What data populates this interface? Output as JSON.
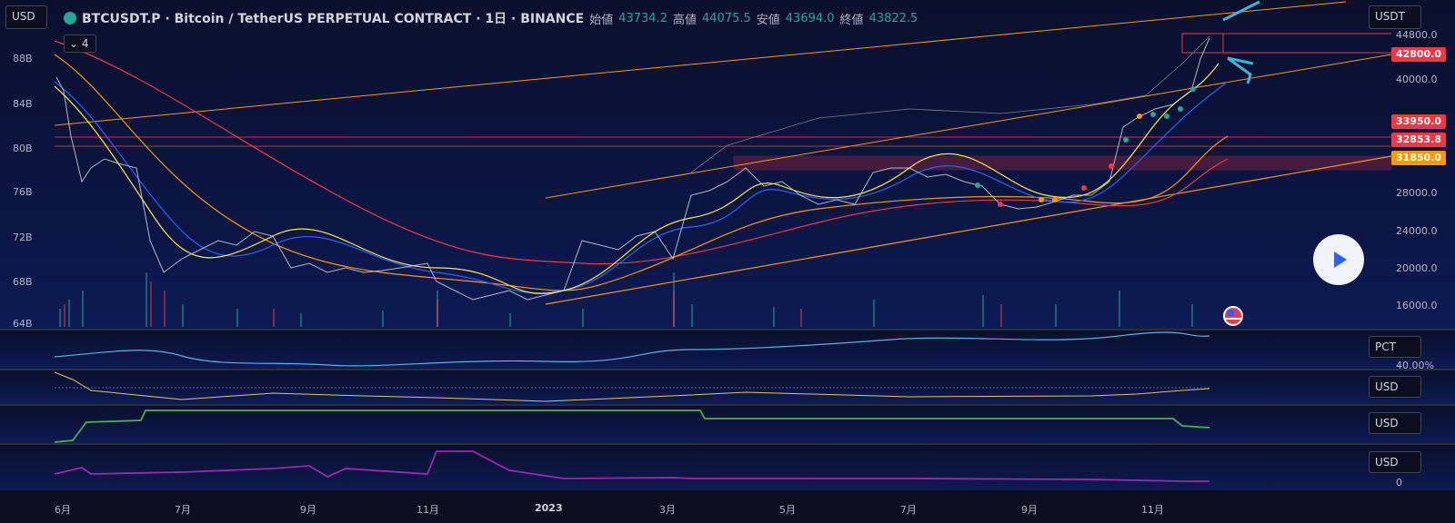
{
  "header": {
    "currency_left": "USD",
    "title": "BTCUSDT.P · Bitcoin / TetherUS PERPETUAL CONTRACT · 1日 · BINANCE",
    "ohlc": [
      {
        "key": "始値",
        "val": "43734.2"
      },
      {
        "key": "高値",
        "val": "44075.5"
      },
      {
        "key": "安値",
        "val": "43694.0"
      },
      {
        "key": "終値",
        "val": "43822.5"
      }
    ],
    "indicator_count": "4"
  },
  "right_axis": {
    "currency": "USDT",
    "ticks": [
      "40000.0",
      "28000.0",
      "24000.0",
      "20000.0",
      "16000.0"
    ],
    "price_tags": [
      {
        "label": "42800.0",
        "color": "#f23645"
      },
      {
        "label": "33950.0",
        "color": "#f23645"
      },
      {
        "label": "32853.8",
        "color": "#f23645"
      },
      {
        "label": "31850.0",
        "color": "#ff9800"
      }
    ],
    "top_clipped": "44800.0"
  },
  "left_axis": {
    "ticks": [
      "88B",
      "84B",
      "80B",
      "76B",
      "72B",
      "68B",
      "64B"
    ]
  },
  "sub_panes": [
    {
      "label": "PCT",
      "sub": "40.00%"
    },
    {
      "label": "USD"
    },
    {
      "label": "USD"
    },
    {
      "label": "USD",
      "sub": "0"
    }
  ],
  "x_axis": [
    "6月",
    "7月",
    "9月",
    "11月",
    "2023",
    "3月",
    "5月",
    "7月",
    "9月",
    "11月"
  ],
  "colors": {
    "bg": "#0b1645",
    "up": "#26a69a",
    "down": "#f23645",
    "orange": "#ff9800",
    "blue": "#2962ff",
    "purple": "#9c27b0",
    "green": "#4caf50"
  },
  "icons": {
    "play": "play-icon",
    "flag": "us-flag-icon"
  }
}
